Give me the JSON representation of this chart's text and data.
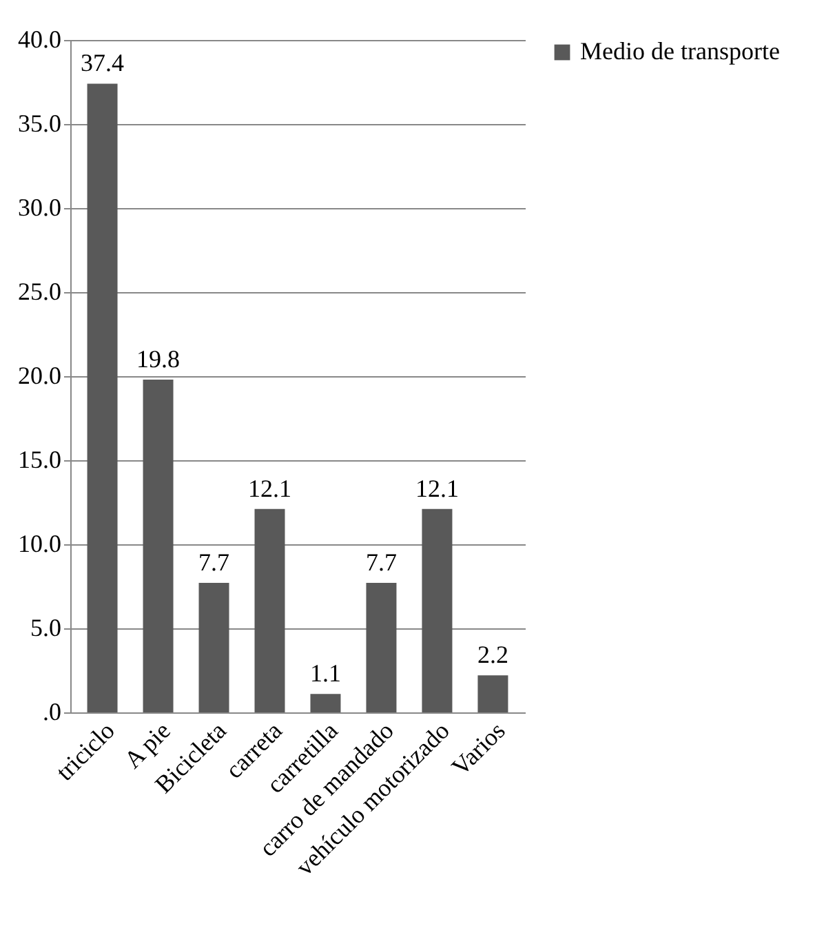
{
  "chart_data": {
    "type": "bar",
    "categories": [
      "triciclo",
      "A pie",
      "Bicicleta",
      "carreta",
      "carretilla",
      "carro de mandado",
      "vehículo motorizado",
      "Varios"
    ],
    "series": [
      {
        "name": "Medio de transporte",
        "color": "#595959",
        "values": [
          37.4,
          19.8,
          7.7,
          12.1,
          1.1,
          7.7,
          12.1,
          2.2
        ]
      }
    ],
    "ylim": [
      0,
      40
    ],
    "yticks": [
      {
        "value": 0,
        "label": ".0"
      },
      {
        "value": 5,
        "label": "5.0"
      },
      {
        "value": 10,
        "label": "10.0"
      },
      {
        "value": 15,
        "label": "15.0"
      },
      {
        "value": 20,
        "label": "20.0"
      },
      {
        "value": 25,
        "label": "25.0"
      },
      {
        "value": 30,
        "label": "30.0"
      },
      {
        "value": 35,
        "label": "35.0"
      },
      {
        "value": 40,
        "label": "40.0"
      }
    ],
    "grid": "y",
    "legend": "right",
    "data_labels": true
  }
}
